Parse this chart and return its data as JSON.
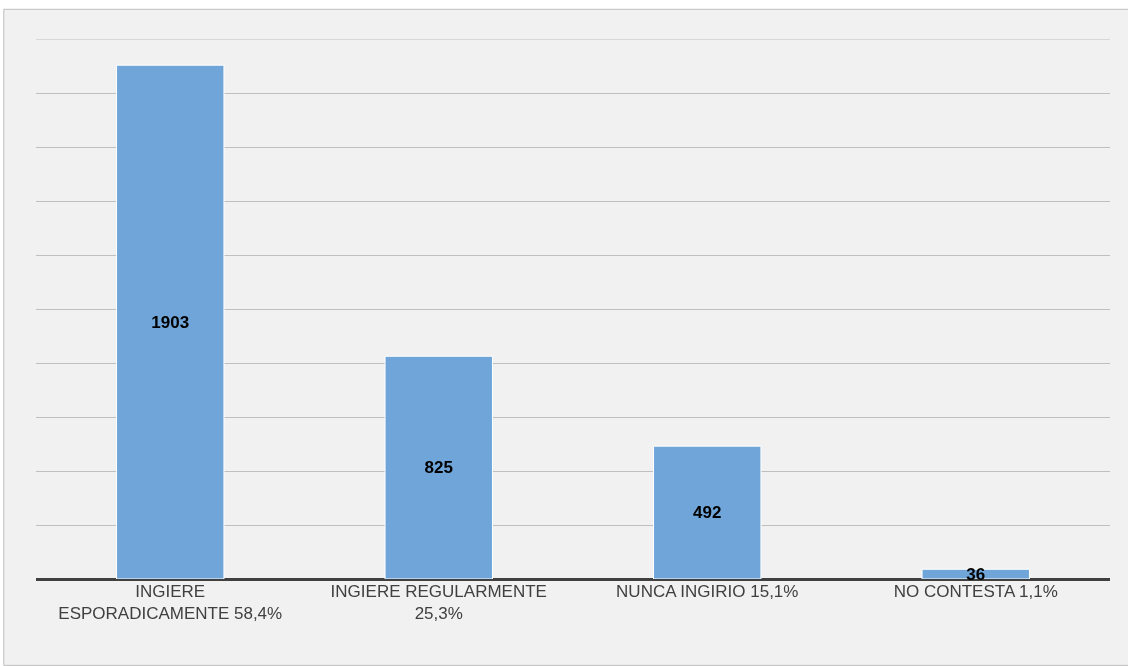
{
  "chart_data": {
    "type": "bar",
    "categories": [
      "INGIERE ESPORADICAMENTE 58,4%",
      "INGIERE REGULARMENTE 25,3%",
      "NUNCA INGIRIO 15,1%",
      "NO CONTESTA 1,1%"
    ],
    "values": [
      1903,
      825,
      492,
      36
    ],
    "color": "#6fa5d8",
    "data_labels": true,
    "ylim": [
      0,
      2000
    ],
    "yticks": [
      {
        "value": 0,
        "label": null
      },
      {
        "value": 200,
        "label": null
      },
      {
        "value": 400,
        "label": null
      },
      {
        "value": 600,
        "label": null
      },
      {
        "value": 800,
        "label": null
      },
      {
        "value": 1000,
        "label": null
      },
      {
        "value": 1200,
        "label": null
      },
      {
        "value": 1400,
        "label": null
      },
      {
        "value": 1600,
        "label": null
      },
      {
        "value": 1800,
        "label": null
      },
      {
        "value": 2000,
        "label": null
      }
    ],
    "grid": "y",
    "tick_labels": "x"
  }
}
